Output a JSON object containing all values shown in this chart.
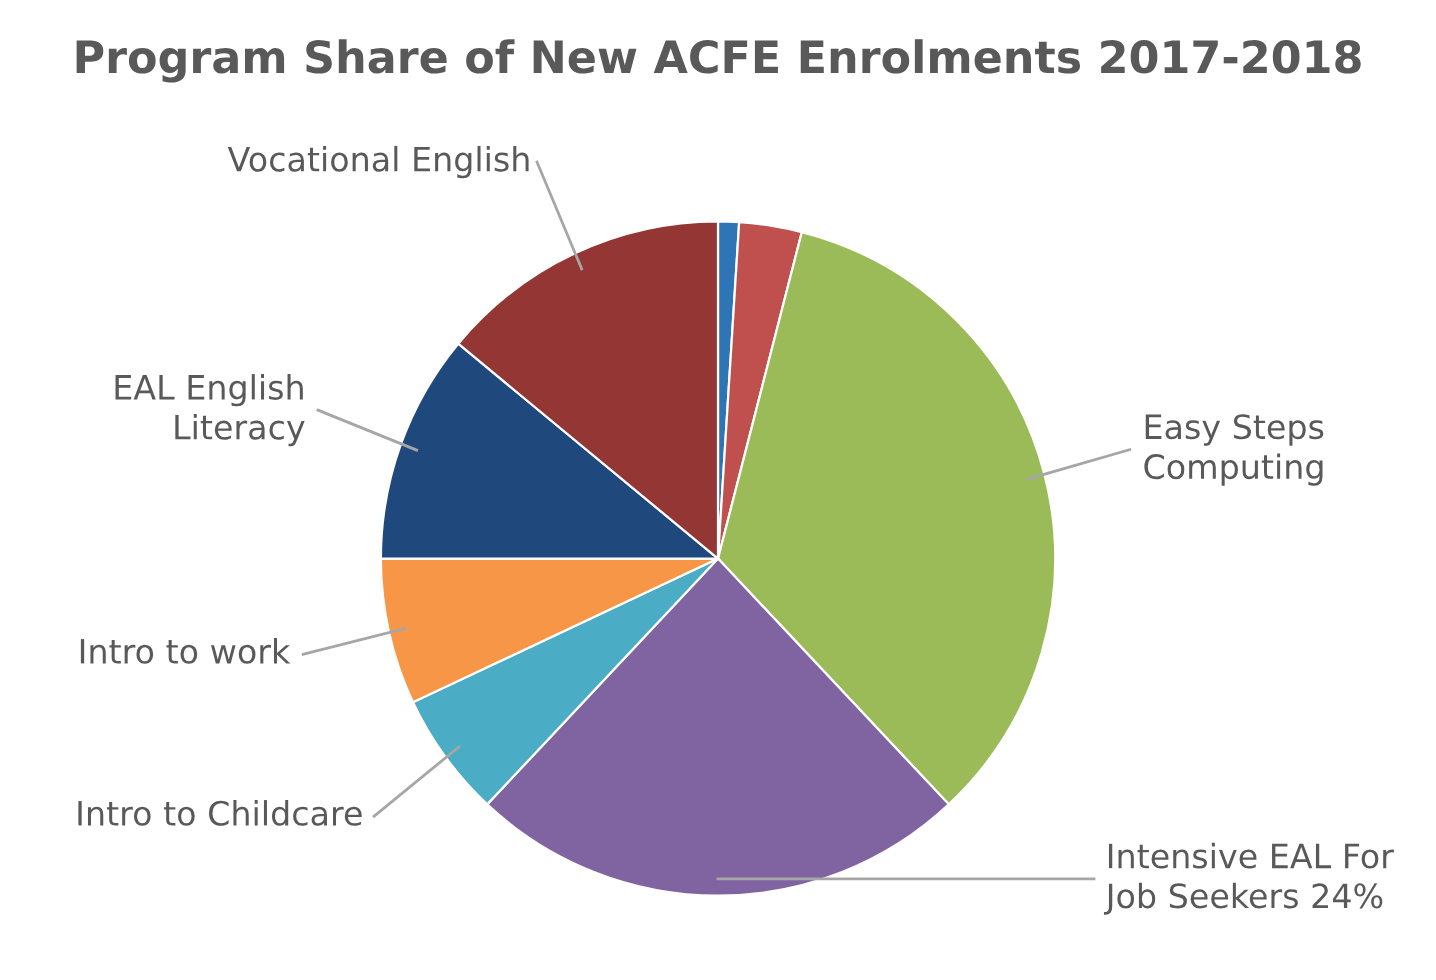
{
  "chart_data": {
    "type": "pie",
    "title": "Program Share of New ACFE Enrolments 2017-2018",
    "categories": [
      null,
      null,
      "Easy Steps Computing",
      "Intensive EAL For Job Seekers",
      "Intro to Childcare",
      "Intro to work",
      "EAL English Literacy",
      "Vocational English"
    ],
    "values": [
      1,
      3,
      34,
      24,
      6,
      7,
      11,
      14
    ],
    "colors": [
      "#2e75b6",
      "#c0504d",
      "#9bbb59",
      "#8064a2",
      "#4bacc6",
      "#f79646",
      "#1f497d",
      "#943634"
    ],
    "value_labels": [
      null,
      null,
      null,
      "24%",
      null,
      null,
      null,
      null
    ]
  }
}
